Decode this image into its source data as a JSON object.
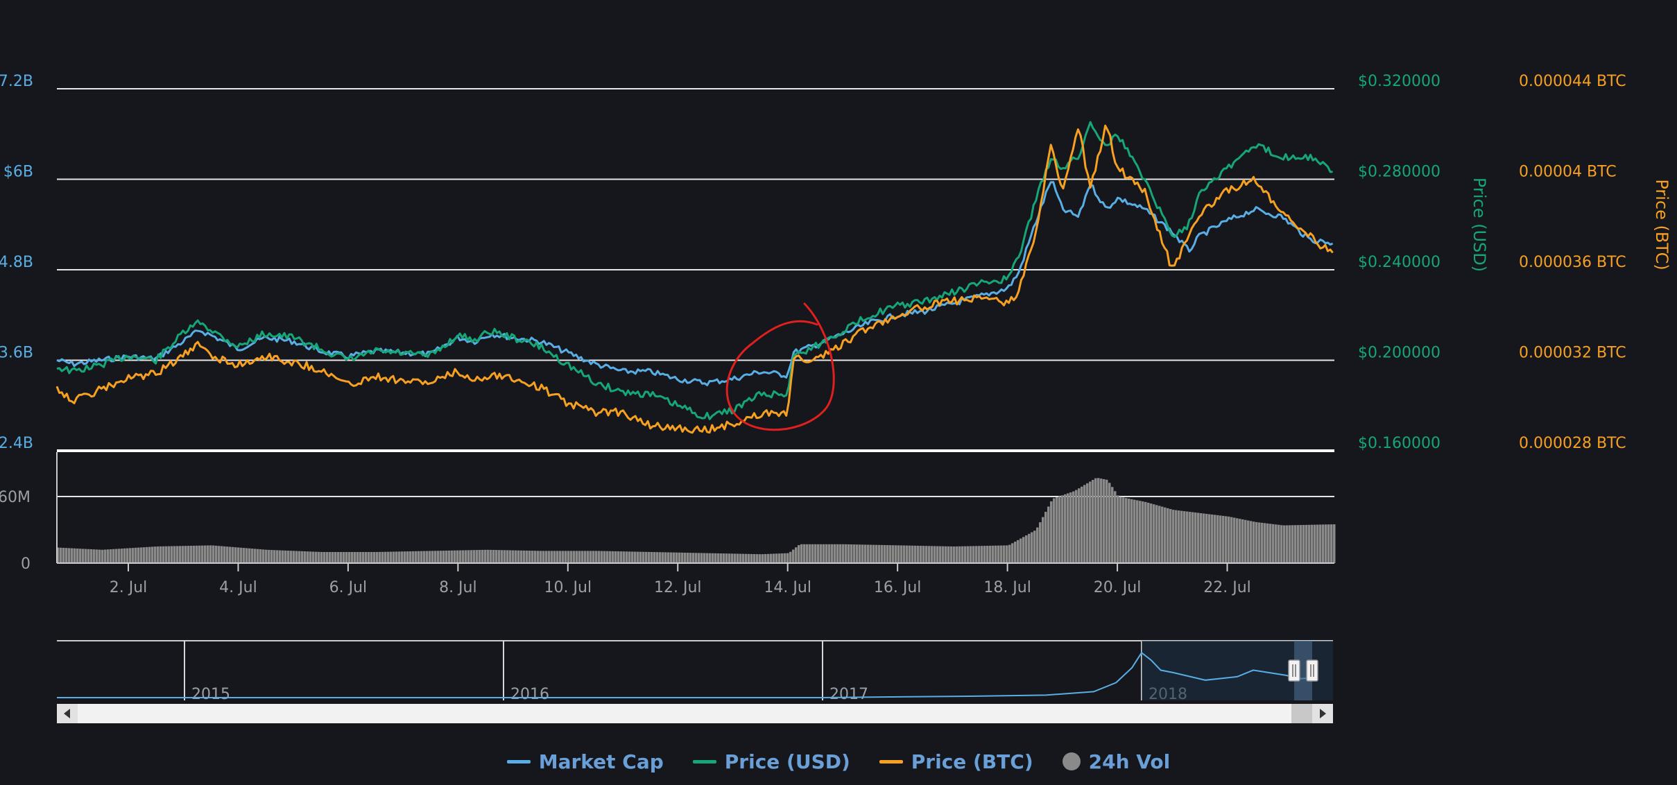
{
  "chart_data": {
    "type": "line",
    "x_axis": {
      "ticks": [
        "2. Jul",
        "4. Jul",
        "6. Jul",
        "8. Jul",
        "10. Jul",
        "12. Jul",
        "14. Jul",
        "16. Jul",
        "18. Jul",
        "20. Jul",
        "22. Jul"
      ],
      "tick_days": [
        2,
        4,
        6,
        8,
        10,
        12,
        14,
        16,
        18,
        20,
        22
      ],
      "range_days": [
        0.7,
        23.95
      ]
    },
    "y_axis_market_cap": {
      "ticks": [
        "7.2B",
        "$6B",
        "4.8B",
        "3.6B",
        "2.4B"
      ],
      "tick_values": [
        7.2,
        6.0,
        4.8,
        3.6,
        2.4
      ],
      "unit": "billion USD",
      "ylim": [
        2.4,
        7.2
      ]
    },
    "y_axis_price_usd": {
      "label": "Price (USD)",
      "ticks": [
        "$0.320000",
        "$0.280000",
        "$0.240000",
        "$0.200000",
        "$0.160000"
      ],
      "ylim": [
        0.16,
        0.32
      ]
    },
    "y_axis_price_btc": {
      "label": "Price (BTC)",
      "ticks": [
        "0.000044 BTC",
        "0.00004 BTC",
        "0.000036 BTC",
        "0.000032 BTC",
        "0.000028 BTC"
      ],
      "ylim": [
        2.8e-05,
        4.4e-05
      ]
    },
    "volume_axis": {
      "ticks": [
        "60M",
        "0"
      ],
      "tick_values": [
        60,
        0
      ],
      "unit": "million USD",
      "ylim": [
        0,
        100
      ]
    },
    "series": [
      {
        "name": "Market Cap",
        "color": "#5aaee6",
        "axis": "market_cap",
        "x": [
          0.7,
          1.0,
          1.5,
          2.0,
          2.5,
          3.0,
          3.3,
          3.6,
          4.0,
          4.5,
          5.0,
          5.5,
          6.0,
          6.5,
          7.0,
          7.5,
          8.0,
          8.3,
          8.6,
          9.0,
          9.5,
          10.0,
          10.5,
          11.0,
          11.5,
          12.0,
          12.5,
          13.0,
          13.5,
          14.0,
          14.1,
          14.5,
          15.0,
          15.5,
          16.0,
          16.5,
          17.0,
          17.5,
          18.0,
          18.2,
          18.5,
          18.8,
          19.0,
          19.3,
          19.5,
          19.8,
          20.0,
          20.5,
          21.0,
          21.3,
          21.5,
          22.0,
          22.5,
          23.0,
          23.5,
          23.95
        ],
        "y": [
          3.6,
          3.55,
          3.6,
          3.65,
          3.62,
          3.85,
          4.0,
          3.9,
          3.75,
          3.9,
          3.85,
          3.72,
          3.65,
          3.72,
          3.7,
          3.68,
          3.9,
          3.85,
          3.95,
          3.9,
          3.85,
          3.7,
          3.55,
          3.45,
          3.45,
          3.35,
          3.3,
          3.35,
          3.45,
          3.4,
          3.7,
          3.8,
          3.95,
          4.1,
          4.2,
          4.25,
          4.35,
          4.45,
          4.55,
          4.75,
          5.4,
          6.0,
          5.6,
          5.5,
          5.95,
          5.6,
          5.75,
          5.6,
          5.3,
          5.05,
          5.25,
          5.45,
          5.6,
          5.5,
          5.2,
          5.15
        ]
      },
      {
        "name": "Price (USD)",
        "color": "#16a678",
        "axis": "price_usd",
        "x": [
          0.7,
          1.0,
          1.5,
          2.0,
          2.5,
          3.0,
          3.3,
          3.6,
          4.0,
          4.5,
          5.0,
          5.5,
          6.0,
          6.5,
          7.0,
          7.5,
          8.0,
          8.3,
          8.6,
          9.0,
          9.5,
          10.0,
          10.5,
          11.0,
          11.5,
          12.0,
          12.5,
          13.0,
          13.5,
          14.0,
          14.1,
          14.5,
          15.0,
          15.5,
          16.0,
          16.5,
          17.0,
          17.5,
          18.0,
          18.2,
          18.5,
          18.8,
          19.0,
          19.3,
          19.5,
          19.8,
          20.0,
          20.5,
          21.0,
          21.3,
          21.5,
          22.0,
          22.5,
          23.0,
          23.5,
          23.95
        ],
        "y": [
          0.197,
          0.195,
          0.198,
          0.202,
          0.2,
          0.212,
          0.217,
          0.212,
          0.206,
          0.212,
          0.21,
          0.205,
          0.2,
          0.204,
          0.203,
          0.202,
          0.211,
          0.209,
          0.213,
          0.21,
          0.206,
          0.198,
          0.19,
          0.186,
          0.185,
          0.18,
          0.175,
          0.178,
          0.185,
          0.185,
          0.202,
          0.206,
          0.213,
          0.22,
          0.224,
          0.226,
          0.23,
          0.234,
          0.236,
          0.245,
          0.27,
          0.29,
          0.285,
          0.29,
          0.305,
          0.295,
          0.3,
          0.28,
          0.255,
          0.26,
          0.275,
          0.285,
          0.295,
          0.29,
          0.29,
          0.283
        ]
      },
      {
        "name": "Price (BTC)",
        "color": "#f7a021",
        "axis": "price_btc",
        "x": [
          0.7,
          1.0,
          1.5,
          2.0,
          2.5,
          3.0,
          3.3,
          3.6,
          4.0,
          4.5,
          5.0,
          5.5,
          6.0,
          6.5,
          7.0,
          7.5,
          8.0,
          8.3,
          8.6,
          9.0,
          9.5,
          10.0,
          10.5,
          11.0,
          11.5,
          12.0,
          12.5,
          13.0,
          13.5,
          14.0,
          14.1,
          14.5,
          15.0,
          15.5,
          16.0,
          16.5,
          17.0,
          17.5,
          18.0,
          18.2,
          18.5,
          18.8,
          19.0,
          19.3,
          19.5,
          19.8,
          20.0,
          20.5,
          21.0,
          21.3,
          21.5,
          22.0,
          22.5,
          23.0,
          23.5,
          23.95
        ],
        "y": [
          3.08e-05,
          3.02e-05,
          3.07e-05,
          3.12e-05,
          3.14e-05,
          3.22e-05,
          3.27e-05,
          3.21e-05,
          3.18e-05,
          3.22e-05,
          3.19e-05,
          3.16e-05,
          3.09e-05,
          3.13e-05,
          3.11e-05,
          3.1e-05,
          3.15e-05,
          3.11e-05,
          3.14e-05,
          3.12e-05,
          3.08e-05,
          3.01e-05,
          2.97e-05,
          2.97e-05,
          2.91e-05,
          2.9e-05,
          2.89e-05,
          2.92e-05,
          2.96e-05,
          2.97e-05,
          3.21e-05,
          3.2e-05,
          3.27e-05,
          3.35e-05,
          3.4e-05,
          3.44e-05,
          3.46e-05,
          3.48e-05,
          3.45e-05,
          3.5e-05,
          3.75e-05,
          4.15e-05,
          3.95e-05,
          4.25e-05,
          3.95e-05,
          4.25e-05,
          4.05e-05,
          3.95e-05,
          3.6e-05,
          3.75e-05,
          3.85e-05,
          3.95e-05,
          4e-05,
          3.85e-05,
          3.75e-05,
          3.66e-05
        ]
      },
      {
        "name": "24h Vol",
        "color": "#8a8a8a",
        "axis": "volume",
        "x": [
          0.7,
          1.5,
          2.5,
          3.5,
          4.5,
          5.5,
          6.5,
          7.5,
          8.5,
          9.5,
          10.5,
          11.5,
          12.5,
          13.5,
          14.0,
          14.2,
          15.0,
          16.0,
          17.0,
          18.0,
          18.5,
          18.8,
          19.2,
          19.6,
          19.8,
          20.0,
          20.5,
          21.0,
          21.5,
          22.0,
          22.5,
          23.0,
          23.95
        ],
        "y": [
          14,
          12,
          15,
          16,
          12,
          10,
          10,
          11,
          12,
          11,
          11,
          10,
          9,
          8,
          9,
          17,
          17,
          16,
          15,
          16,
          30,
          58,
          65,
          77,
          75,
          60,
          55,
          48,
          45,
          42,
          37,
          34,
          35
        ]
      }
    ],
    "annotation": "red hand-drawn circle around 14. Jul price jump",
    "navigator": {
      "year_labels": [
        "2015",
        "2016",
        "2017",
        "2018"
      ],
      "year_positions": [
        2015.0,
        2016.0,
        2017.0,
        2018.0
      ],
      "start_year": 2014.6,
      "end_year": 2018.6,
      "series_name": "Market Cap",
      "x": [
        2014.6,
        2015.0,
        2015.5,
        2016.0,
        2016.5,
        2017.0,
        2017.3,
        2017.5,
        2017.7,
        2017.85,
        2017.92,
        2017.97,
        2018.0,
        2018.03,
        2018.06,
        2018.1,
        2018.2,
        2018.3,
        2018.35,
        2018.4,
        2018.45,
        2018.5,
        2018.55
      ],
      "y": [
        0.0,
        0.0,
        0.0,
        0.0,
        0.0,
        0.0,
        0.02,
        0.03,
        0.05,
        0.12,
        0.3,
        0.6,
        0.9,
        0.75,
        0.55,
        0.5,
        0.35,
        0.42,
        0.55,
        0.5,
        0.45,
        0.38,
        0.4
      ],
      "selected_range": "last ~3 weeks (July 2018)"
    },
    "legend": [
      "Market Cap",
      "Price (USD)",
      "Price (BTC)",
      "24h Vol"
    ],
    "legend_position": "bottom-center",
    "grid": true
  },
  "colors": {
    "background": "#15171c",
    "market_cap": "#5aaee6",
    "price_usd": "#16a678",
    "price_btc": "#f7a021",
    "volume": "#8a8a8a",
    "grid": "#e6e6e6",
    "annotation": "#e01f1f"
  }
}
